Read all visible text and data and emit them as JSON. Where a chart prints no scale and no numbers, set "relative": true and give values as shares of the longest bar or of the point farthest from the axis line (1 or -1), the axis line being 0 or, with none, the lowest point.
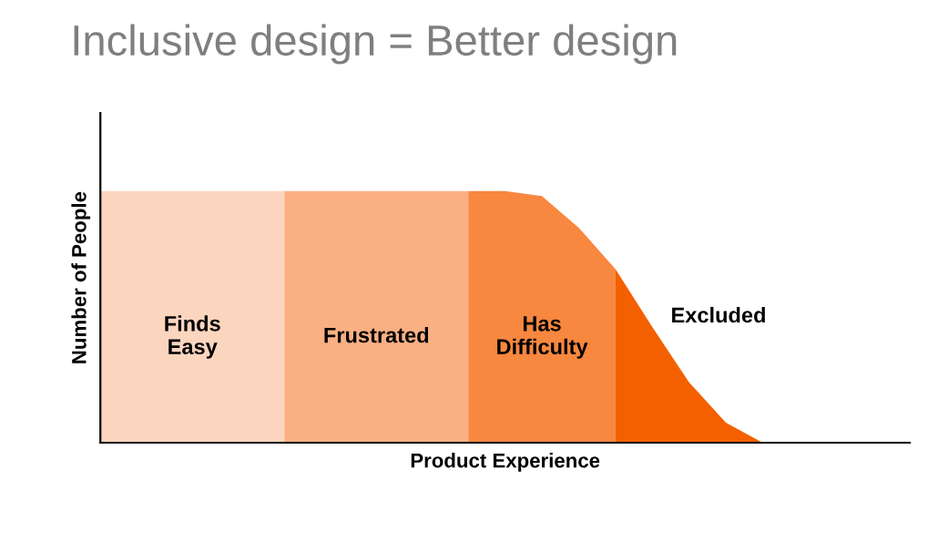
{
  "chart_data": {
    "type": "area",
    "title": "Inclusive design = Better design",
    "xlabel": "Product Experience",
    "ylabel": "Number of People",
    "relative": true,
    "categories": [
      null,
      null,
      null,
      null,
      null,
      null,
      null,
      null,
      null,
      null,
      null,
      null,
      null,
      null,
      null,
      null,
      null,
      null,
      null,
      null,
      null,
      null,
      null
    ],
    "series": [
      {
        "name": "Finds Easy",
        "color": "#fcd5bf",
        "values": [
          1,
          1,
          1,
          1,
          1,
          1,
          null,
          null,
          null,
          null,
          null,
          null,
          null,
          null,
          null,
          null,
          null,
          null,
          null,
          null,
          null,
          null,
          null
        ]
      },
      {
        "name": "Frustrated",
        "color": "#fab083",
        "values": [
          null,
          null,
          null,
          null,
          null,
          1,
          1,
          1,
          1,
          1,
          1,
          null,
          null,
          null,
          null,
          null,
          null,
          null,
          null,
          null,
          null,
          null,
          null
        ]
      },
      {
        "name": "Has Difficulty",
        "color": "#f8873f",
        "values": [
          null,
          null,
          null,
          null,
          null,
          null,
          null,
          null,
          null,
          null,
          1,
          1,
          0.98,
          0.855,
          0.69,
          null,
          null,
          null,
          null,
          null,
          null,
          null,
          null
        ]
      },
      {
        "name": "Excluded",
        "color": "#f46000",
        "values": [
          null,
          null,
          null,
          null,
          null,
          null,
          null,
          null,
          null,
          null,
          null,
          null,
          null,
          null,
          0.69,
          0.46,
          0.24,
          0.08,
          0,
          null,
          null,
          null,
          null
        ]
      }
    ]
  }
}
